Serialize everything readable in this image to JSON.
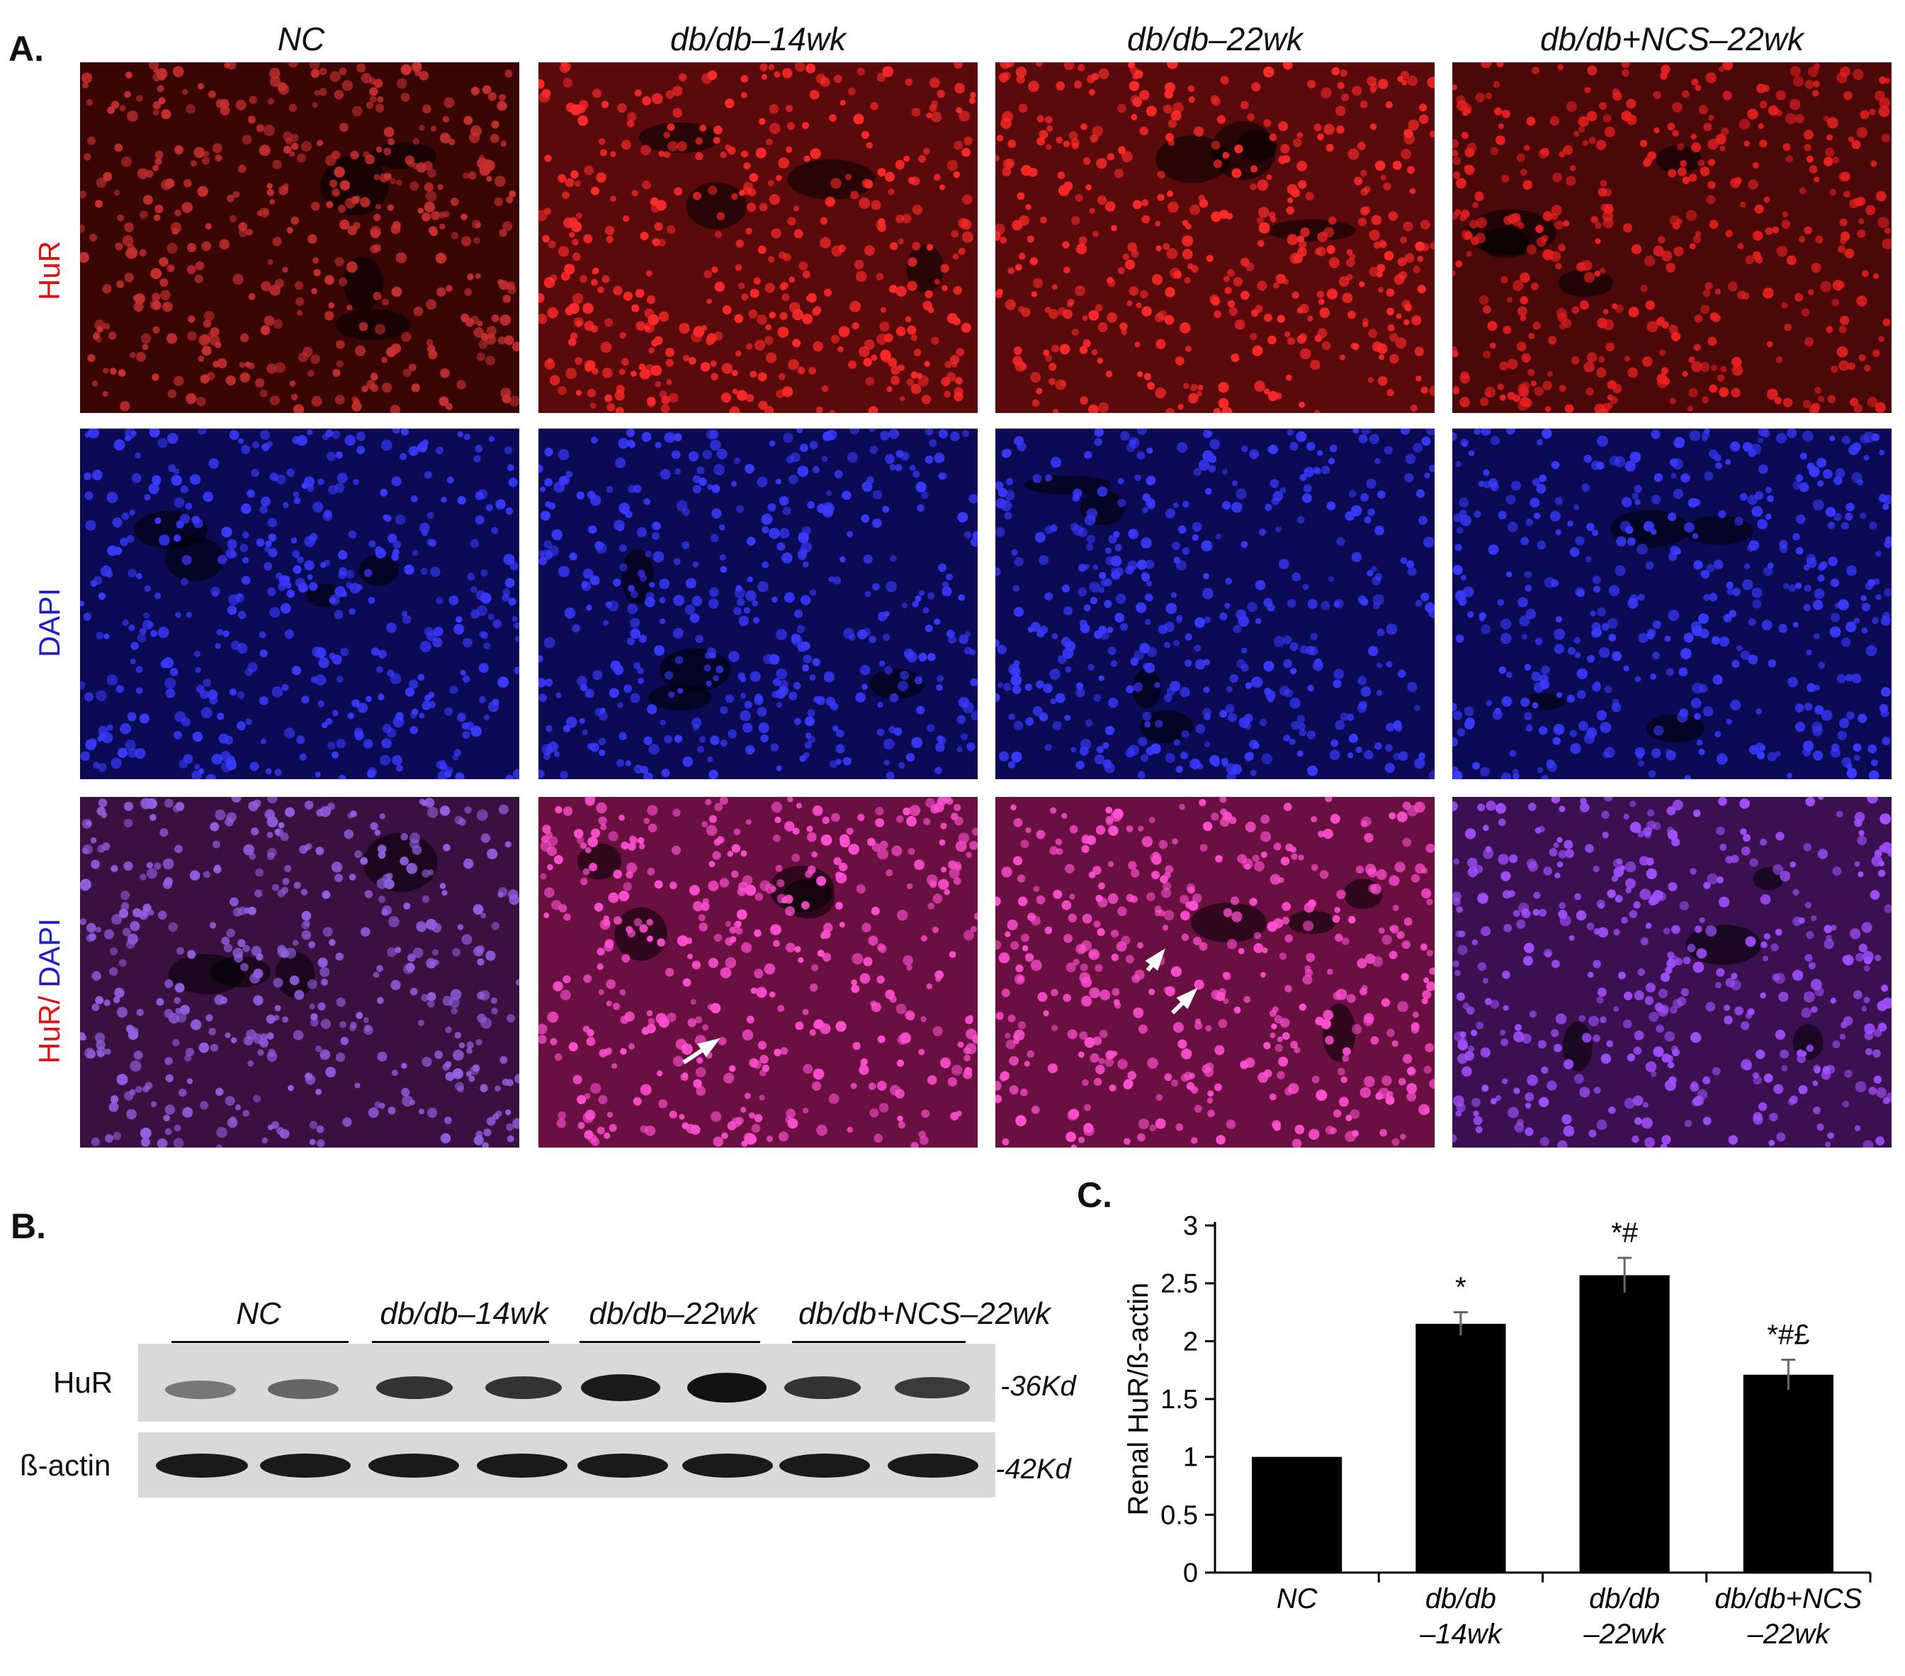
{
  "panel_a": {
    "letter": "A.",
    "columns": [
      "NC",
      "db/db–14wk",
      "db/db–22wk",
      "db/db+NCS–22wk"
    ],
    "rows": [
      {
        "parts": [
          {
            "text": "HuR",
            "color": "#e01010"
          }
        ]
      },
      {
        "parts": [
          {
            "text": "DAPI",
            "color": "#2020c0"
          }
        ]
      },
      {
        "parts": [
          {
            "text": "HuR/ ",
            "color": "#e01010"
          },
          {
            "text": "DAPI",
            "color": "#2020c0"
          }
        ]
      }
    ],
    "arrows": [
      {
        "column": 1,
        "row": 2,
        "count": 1
      },
      {
        "column": 2,
        "row": 2,
        "count": 2
      }
    ]
  },
  "panel_b": {
    "letter": "B.",
    "groups": [
      "NC",
      "db/db–14wk",
      "db/db–22wk",
      "db/db+NCS–22wk"
    ],
    "proteins": [
      {
        "name": "HuR",
        "kd": "-36Kd"
      },
      {
        "name": "ß-actin",
        "kd": "-42Kd"
      }
    ]
  },
  "panel_c": {
    "letter": "C.",
    "chart_data": {
      "type": "bar",
      "categories": [
        "NC",
        "db/db\n–14wk",
        "db/db\n–22wk",
        "db/db+NCS\n–22wk"
      ],
      "values": [
        1.0,
        2.15,
        2.57,
        1.71
      ],
      "errors": [
        0.0,
        0.1,
        0.15,
        0.13
      ],
      "annotations": [
        "",
        "*",
        "*#",
        "*#£"
      ],
      "ylabel": "Renal HuR/ß-actin",
      "xlabel": "",
      "ylim": [
        0,
        3
      ],
      "yticks": [
        "0",
        "0.5",
        "1",
        "1.5",
        "2",
        "2.5",
        "3"
      ],
      "bar_color": "#000000",
      "grid": false
    }
  }
}
